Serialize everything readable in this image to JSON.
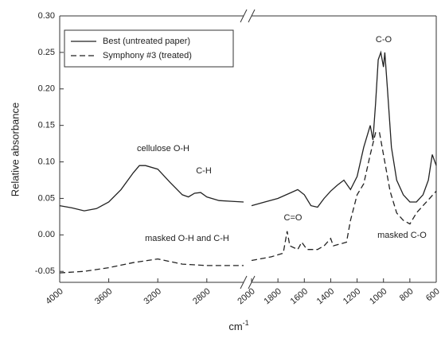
{
  "chart_data": {
    "type": "line",
    "ylabel": "Relative absorbance",
    "xlabel": {
      "base": "cm",
      "superscript": "-1"
    },
    "xlim": [
      4000,
      600
    ],
    "x_break": [
      2500,
      2000
    ],
    "ylim": [
      -0.065,
      0.3
    ],
    "yticks": [
      {
        "value": 0.3,
        "label": "0.30"
      },
      0.25,
      {
        "value": 0.2,
        "label": "0.20"
      },
      0.15,
      {
        "value": 0.1,
        "label": "0.10"
      },
      0.05,
      {
        "value": 0,
        "label": "0.00"
      },
      -0.05
    ],
    "xticks": [
      4000,
      3600,
      3200,
      2800,
      2000,
      1800,
      1600,
      1400,
      1200,
      1000,
      800,
      600
    ],
    "legend": "upper left",
    "series": [
      {
        "name": "Best (untreated paper)",
        "color": "#222222",
        "dash": "solid",
        "x": [
          4000,
          3900,
          3800,
          3700,
          3600,
          3500,
          3400,
          3350,
          3300,
          3200,
          3100,
          3000,
          2950,
          2900,
          2850,
          2800,
          2700,
          2600,
          2500,
          null,
          2000,
          1900,
          1800,
          1700,
          1650,
          1600,
          1550,
          1500,
          1450,
          1400,
          1350,
          1300,
          1250,
          1200,
          1150,
          1100,
          1080,
          1060,
          1040,
          1020,
          1000,
          990,
          970,
          940,
          900,
          850,
          800,
          750,
          700,
          660,
          630,
          600
        ],
        "values": [
          0.04,
          0.037,
          0.033,
          0.036,
          0.045,
          0.062,
          0.085,
          0.095,
          0.095,
          0.09,
          0.072,
          0.055,
          0.052,
          0.057,
          0.058,
          0.052,
          0.047,
          0.046,
          0.045,
          null,
          0.04,
          0.045,
          0.05,
          0.058,
          0.062,
          0.055,
          0.04,
          0.038,
          0.05,
          0.06,
          0.068,
          0.075,
          0.062,
          0.08,
          0.12,
          0.15,
          0.13,
          0.18,
          0.24,
          0.25,
          0.23,
          0.25,
          0.2,
          0.12,
          0.075,
          0.055,
          0.045,
          0.045,
          0.055,
          0.075,
          0.11,
          0.095
        ]
      },
      {
        "name": "Symphony #3 (treated)",
        "color": "#222222",
        "dash": "dashed",
        "x": [
          4000,
          3800,
          3600,
          3400,
          3200,
          3000,
          2800,
          2500,
          null,
          2000,
          1850,
          1760,
          1730,
          1710,
          1650,
          1620,
          1580,
          1500,
          1450,
          1400,
          1380,
          1320,
          1280,
          1250,
          1200,
          1150,
          1100,
          1060,
          1030,
          1000,
          950,
          900,
          850,
          800,
          750,
          700,
          650,
          600
        ],
        "values": [
          -0.052,
          -0.05,
          -0.045,
          -0.038,
          -0.033,
          -0.04,
          -0.042,
          -0.042,
          null,
          -0.035,
          -0.03,
          -0.025,
          0.005,
          -0.015,
          -0.02,
          -0.01,
          -0.02,
          -0.02,
          -0.015,
          -0.005,
          -0.015,
          -0.012,
          -0.01,
          0.02,
          0.055,
          0.07,
          0.11,
          0.14,
          0.14,
          0.11,
          0.06,
          0.03,
          0.02,
          0.015,
          0.03,
          0.04,
          0.05,
          0.06
        ]
      }
    ],
    "annotations": [
      "cellulose O-H",
      "C-H",
      "masked O-H and C-H",
      "C=O",
      "masked C-O",
      "C-O"
    ]
  }
}
